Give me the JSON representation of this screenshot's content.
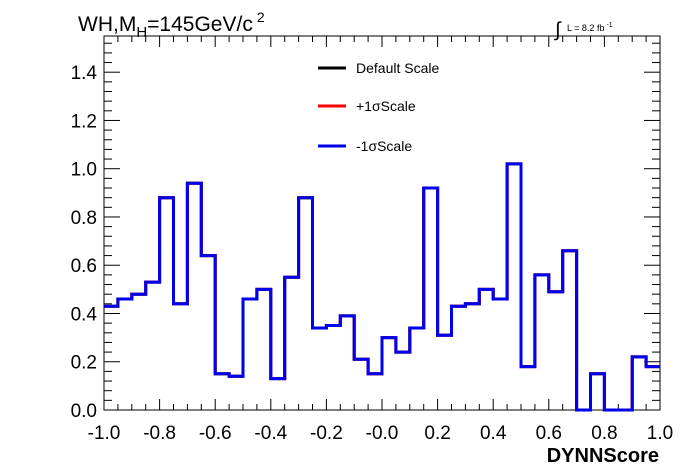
{
  "chart_data": {
    "type": "line",
    "style": "step-histogram",
    "title_text": "WH,M",
    "title_sub": "H",
    "title_rest": "=145GeV/c",
    "title_sup": "2",
    "lumi_symbol": "∫",
    "lumi_text": "L = 8.2 fb",
    "lumi_sup": "-1",
    "xlabel": "DYNNScore",
    "ylabel": "",
    "xlim": [
      -1.0,
      1.0
    ],
    "ylim": [
      0.0,
      1.55
    ],
    "xticks": [
      -1.0,
      -0.8,
      -0.6,
      -0.4,
      -0.2,
      0.0,
      0.2,
      0.4,
      0.6,
      0.8,
      1.0
    ],
    "xtick_labels": [
      "-1.0",
      "-0.8",
      "-0.6",
      "-0.4",
      "-0.2",
      "-0.0",
      "0.2",
      "0.4",
      "0.6",
      "0.8",
      "1.0"
    ],
    "yticks": [
      0.0,
      0.2,
      0.4,
      0.6,
      0.8,
      1.0,
      1.2,
      1.4
    ],
    "ytick_labels": [
      "0.0",
      "0.2",
      "0.4",
      "0.6",
      "0.8",
      "1.0",
      "1.2",
      "1.4"
    ],
    "grid": false,
    "legend_position": "top-center",
    "bin_edges": [
      -1.0,
      -0.95,
      -0.9,
      -0.85,
      -0.8,
      -0.75,
      -0.7,
      -0.65,
      -0.6,
      -0.55,
      -0.5,
      -0.45,
      -0.4,
      -0.35,
      -0.3,
      -0.25,
      -0.2,
      -0.15,
      -0.1,
      -0.05,
      0.0,
      0.05,
      0.1,
      0.15,
      0.2,
      0.25,
      0.3,
      0.35,
      0.4,
      0.45,
      0.5,
      0.55,
      0.6,
      0.65,
      0.7,
      0.75,
      0.8,
      0.85,
      0.9,
      0.95,
      1.0
    ],
    "series": [
      {
        "name": "Default Scale",
        "color": "#000000",
        "values": [
          0.43,
          0.46,
          0.48,
          0.53,
          0.88,
          0.44,
          0.94,
          0.64,
          0.15,
          0.14,
          0.46,
          0.5,
          0.13,
          0.55,
          0.88,
          0.34,
          0.35,
          0.39,
          0.21,
          0.15,
          0.3,
          0.24,
          0.34,
          0.92,
          0.31,
          0.43,
          0.44,
          0.5,
          0.46,
          1.02,
          0.18,
          0.56,
          0.49,
          0.66,
          0.0,
          0.15,
          0.0,
          0.0,
          0.22,
          0.18
        ]
      },
      {
        "name": "+1σScale",
        "color": "#ff0000",
        "values": [
          0.43,
          0.46,
          0.48,
          0.53,
          0.88,
          0.44,
          0.94,
          0.64,
          0.15,
          0.14,
          0.46,
          0.5,
          0.13,
          0.55,
          0.88,
          0.34,
          0.35,
          0.39,
          0.21,
          0.15,
          0.3,
          0.24,
          0.34,
          0.92,
          0.31,
          0.43,
          0.44,
          0.5,
          0.46,
          1.02,
          0.18,
          0.56,
          0.49,
          0.66,
          0.0,
          0.15,
          0.0,
          0.0,
          0.22,
          0.18
        ]
      },
      {
        "name": "-1σScale",
        "color": "#0000ee",
        "values": [
          0.43,
          0.46,
          0.48,
          0.53,
          0.88,
          0.44,
          0.94,
          0.64,
          0.15,
          0.14,
          0.46,
          0.5,
          0.13,
          0.55,
          0.88,
          0.34,
          0.35,
          0.39,
          0.21,
          0.15,
          0.3,
          0.24,
          0.34,
          0.92,
          0.31,
          0.43,
          0.44,
          0.5,
          0.46,
          1.02,
          0.18,
          0.56,
          0.49,
          0.66,
          0.0,
          0.15,
          0.0,
          0.0,
          0.22,
          0.18
        ]
      }
    ]
  }
}
